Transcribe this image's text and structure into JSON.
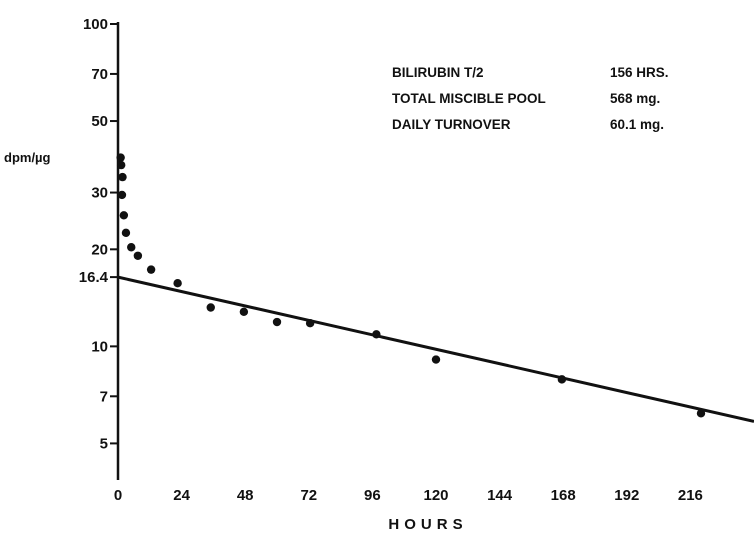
{
  "chart_data": {
    "type": "scatter",
    "ylabel": "dpm/µg",
    "xlabel": "HOURS",
    "y_scale": "log",
    "ylim": [
      3.85,
      100
    ],
    "xlim": [
      0,
      240
    ],
    "x_ticks": [
      0,
      24,
      48,
      72,
      96,
      120,
      144,
      168,
      192,
      216
    ],
    "x_tick_labels": [
      "0",
      "24",
      "48",
      "72",
      "96",
      "120",
      "144",
      "168",
      "192",
      "216"
    ],
    "y_ticks": [
      100,
      70,
      50,
      30,
      20,
      16.4,
      10,
      7,
      5
    ],
    "y_tick_labels": [
      "100",
      "70",
      "50",
      "30",
      "20",
      "16.4",
      "10",
      "7",
      "5"
    ],
    "grid": false,
    "annotations": [
      {
        "label": "BILIRUBIN T/2",
        "value": "156 HRS."
      },
      {
        "label": "TOTAL MISCIBLE POOL",
        "value": "568 mg."
      },
      {
        "label": "DAILY TURNOVER",
        "value": "60.1 mg."
      }
    ],
    "points": [
      {
        "x": 1,
        "y": 38.5
      },
      {
        "x": 1.2,
        "y": 36.5
      },
      {
        "x": 1.7,
        "y": 33.5
      },
      {
        "x": 1.5,
        "y": 29.5
      },
      {
        "x": 2.2,
        "y": 25.5
      },
      {
        "x": 3,
        "y": 22.5
      },
      {
        "x": 5,
        "y": 20.3
      },
      {
        "x": 7.5,
        "y": 19.1
      },
      {
        "x": 12.5,
        "y": 17.3
      },
      {
        "x": 22.5,
        "y": 15.7
      },
      {
        "x": 35,
        "y": 13.2
      },
      {
        "x": 47.5,
        "y": 12.8
      },
      {
        "x": 60,
        "y": 11.9
      },
      {
        "x": 72.5,
        "y": 11.8
      },
      {
        "x": 97.5,
        "y": 10.9
      },
      {
        "x": 120,
        "y": 9.1
      },
      {
        "x": 167.5,
        "y": 7.9
      },
      {
        "x": 220,
        "y": 6.2
      }
    ],
    "fit_line": {
      "x": [
        0,
        240
      ],
      "y": [
        16.4,
        5.85
      ]
    }
  }
}
